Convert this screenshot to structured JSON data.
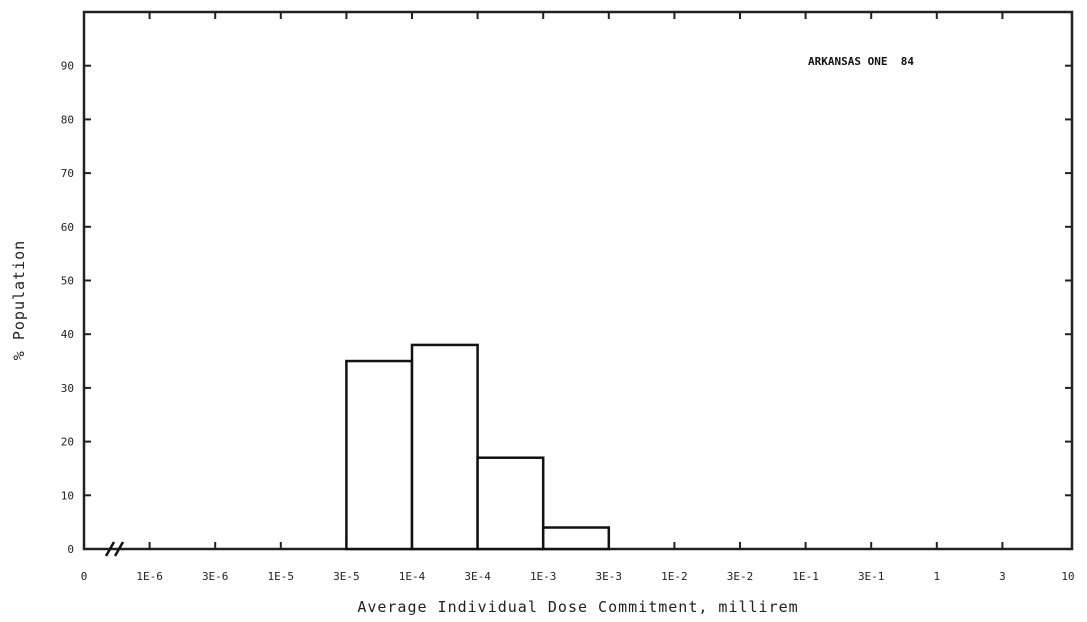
{
  "chart_data": {
    "type": "bar",
    "title": "",
    "annotation": "ARKANSAS ONE  84",
    "xlabel": "Average Individual Dose Commitment, millirem",
    "ylabel": "% Population",
    "categories": [
      "0",
      "1E-6",
      "3E-6",
      "1E-5",
      "3E-5",
      "1E-4",
      "3E-4",
      "1E-3",
      "3E-3",
      "1E-2",
      "3E-2",
      "1E-1",
      "3E-1",
      "1",
      "3",
      "10"
    ],
    "bins": [
      {
        "from": "3E-5",
        "to": "1E-4",
        "value": 35
      },
      {
        "from": "1E-4",
        "to": "3E-4",
        "value": 38
      },
      {
        "from": "3E-4",
        "to": "1E-3",
        "value": 17
      },
      {
        "from": "1E-3",
        "to": "3E-3",
        "value": 4
      }
    ],
    "y_ticks": [
      0,
      10,
      20,
      30,
      40,
      50,
      60,
      70,
      80,
      90
    ],
    "ylim": [
      0,
      100
    ],
    "axis_break": true,
    "grid": false
  }
}
